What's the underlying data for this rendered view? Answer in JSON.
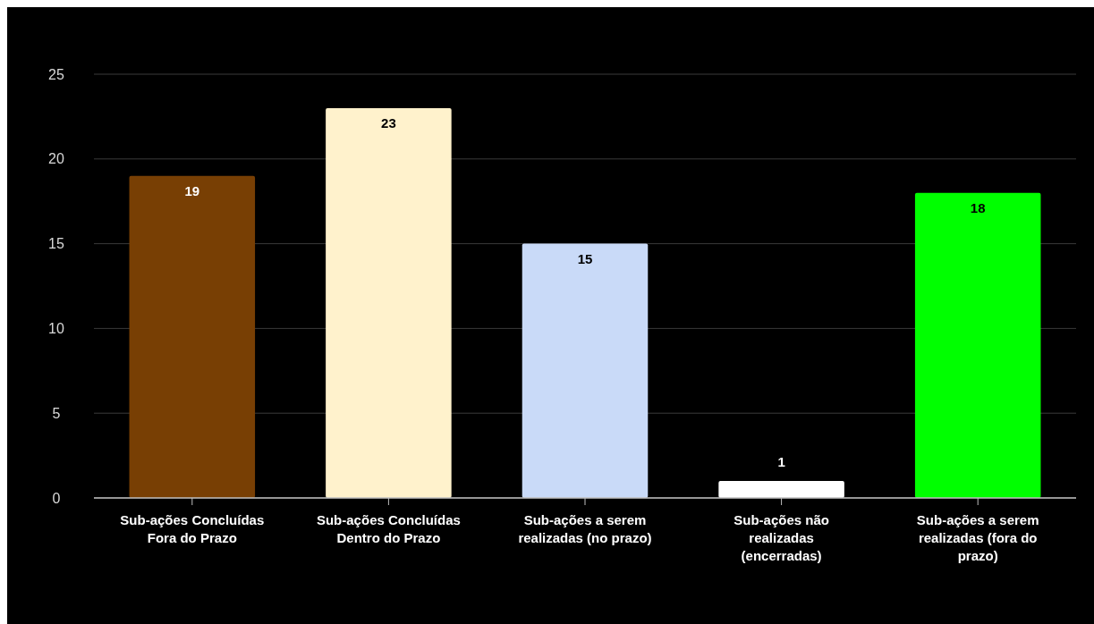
{
  "chart_data": {
    "type": "bar",
    "categories": [
      "Sub-ações Concluídas Fora do Prazo",
      "Sub-ações Concluídas Dentro do Prazo",
      "Sub-ações a serem realizadas (no prazo)",
      "Sub-ações não realizadas (encerradas)",
      "Sub-ações a serem realizadas (fora do prazo)"
    ],
    "values": [
      19,
      23,
      15,
      1,
      18
    ],
    "colors": [
      "#783f04",
      "#fff2cc",
      "#c9daf8",
      "#ffffff",
      "#00ff00"
    ],
    "ylim": [
      0,
      25
    ],
    "yticks": [
      0,
      5,
      10,
      15,
      20,
      25
    ],
    "grid": "y",
    "data_labels": true
  }
}
